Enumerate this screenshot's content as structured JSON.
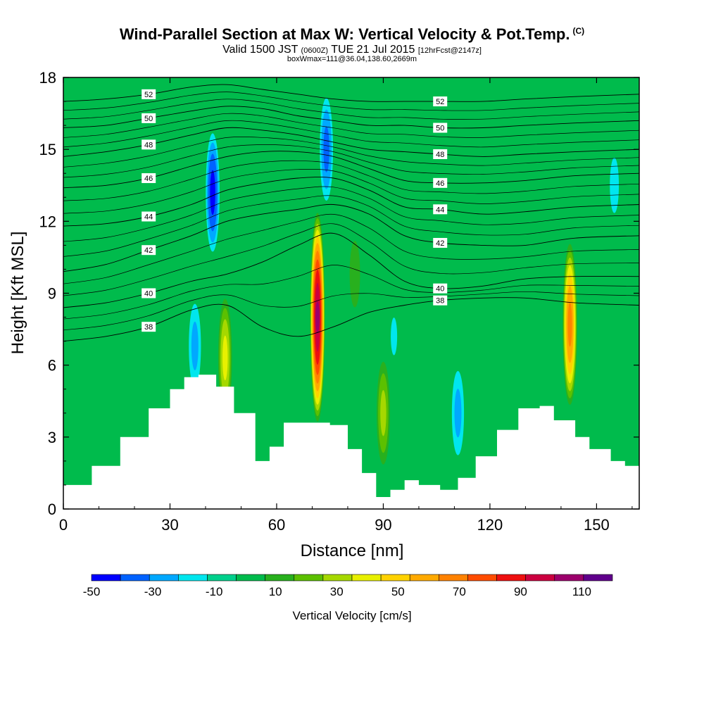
{
  "header": {
    "title": "Wind-Parallel Section at Max W: Vertical Velocity & Pot.Temp.",
    "corner_mark": "(C)",
    "valid_prefix": "Valid 1500 JST",
    "valid_utc": "(0600Z)",
    "valid_date": "TUE 21 Jul 2015",
    "forecast": "[12hrFcst@2147z]",
    "box_info": "boxWmax=111@36.04,138.60,2669m"
  },
  "chart_data": {
    "type": "heatmap",
    "xlabel": "Distance [nm]",
    "ylabel": "Height [Kft MSL]",
    "xlim": [
      0,
      162
    ],
    "ylim": [
      0,
      18
    ],
    "x_ticks": [
      0,
      30,
      60,
      90,
      120,
      150
    ],
    "y_ticks": [
      0,
      3,
      6,
      9,
      12,
      15,
      18
    ],
    "background_value_cm_s": 0,
    "updrafts": [
      {
        "x": 71.5,
        "y": 8.0,
        "peak_cm_s": 111
      },
      {
        "x": 142.5,
        "y": 7.7,
        "peak_cm_s": 75
      },
      {
        "x": 45.5,
        "y": 6.3,
        "peak_cm_s": 45
      },
      {
        "x": 82,
        "y": 9.8,
        "peak_cm_s": 18
      },
      {
        "x": 90,
        "y": 4.0,
        "peak_cm_s": 35
      }
    ],
    "downdrafts": [
      {
        "x": 42,
        "y": 13.2,
        "peak_cm_s": -45
      },
      {
        "x": 74,
        "y": 15.0,
        "peak_cm_s": -35
      },
      {
        "x": 37,
        "y": 6.8,
        "peak_cm_s": -25
      },
      {
        "x": 111,
        "y": 4.0,
        "peak_cm_s": -25
      },
      {
        "x": 155,
        "y": 13.5,
        "peak_cm_s": -15
      },
      {
        "x": 93,
        "y": 7.2,
        "peak_cm_s": -12
      }
    ],
    "terrain": {
      "x": [
        0,
        8,
        16,
        24,
        30,
        34,
        38,
        43,
        48,
        54,
        58,
        62,
        66,
        70,
        75,
        80,
        84,
        88,
        92,
        96,
        100,
        106,
        111,
        116,
        122,
        128,
        134,
        138,
        144,
        148,
        154,
        158,
        162
      ],
      "y": [
        1.0,
        1.8,
        3.0,
        4.2,
        5.0,
        5.5,
        5.6,
        5.1,
        4.0,
        2.0,
        2.6,
        3.6,
        3.6,
        3.6,
        3.5,
        2.5,
        1.5,
        0.5,
        0.8,
        1.2,
        1.0,
        0.8,
        1.3,
        2.2,
        3.3,
        4.2,
        4.3,
        3.7,
        3.0,
        2.5,
        2.0,
        1.8,
        1.6
      ]
    },
    "theta_contours": [
      {
        "label": "38",
        "y": [
          7.0,
          7.2,
          7.6,
          8.3,
          8.5,
          7.6,
          7.2,
          7.6,
          8.2,
          8.5,
          8.7,
          8.8,
          8.8,
          8.6,
          8.5
        ]
      },
      {
        "label": "40",
        "y": [
          8.4,
          8.6,
          9.0,
          9.5,
          9.8,
          10.3,
          11.0,
          11.5,
          10.6,
          9.5,
          9.2,
          9.3,
          9.6,
          9.7,
          9.7
        ]
      },
      {
        "label": "42",
        "y": [
          9.9,
          10.2,
          10.8,
          11.4,
          12.0,
          12.3,
          12.5,
          12.7,
          12.3,
          11.4,
          11.1,
          11.0,
          11.0,
          11.3,
          11.4
        ]
      },
      {
        "label": "44",
        "y": [
          11.8,
          11.9,
          12.2,
          12.7,
          13.3,
          13.6,
          13.8,
          13.8,
          13.3,
          12.6,
          12.5,
          12.3,
          12.4,
          12.6,
          12.7
        ]
      },
      {
        "label": "46",
        "y": [
          13.4,
          13.5,
          13.8,
          14.3,
          14.7,
          14.9,
          14.9,
          14.7,
          14.2,
          13.7,
          13.6,
          13.6,
          13.7,
          13.9,
          14.0
        ]
      },
      {
        "label": "48",
        "y": [
          14.7,
          14.9,
          15.2,
          15.6,
          15.9,
          15.8,
          15.6,
          15.3,
          15.0,
          14.9,
          14.8,
          14.7,
          14.8,
          14.9,
          15.0
        ]
      },
      {
        "label": "50",
        "y": [
          15.9,
          16.0,
          16.3,
          16.6,
          16.8,
          16.7,
          16.4,
          16.2,
          16.0,
          16.0,
          15.9,
          15.9,
          16.0,
          16.1,
          16.2
        ]
      },
      {
        "label": "52",
        "y": [
          17.0,
          17.1,
          17.3,
          17.6,
          17.7,
          17.5,
          17.3,
          17.1,
          17.0,
          17.0,
          17.0,
          17.0,
          17.1,
          17.2,
          17.3
        ]
      }
    ],
    "contour_x": [
      0,
      12,
      24,
      36,
      46,
      56,
      66,
      76,
      86,
      96,
      106,
      118,
      130,
      144,
      162
    ],
    "colorbar": {
      "label": "Vertical Velocity [cm/s]",
      "tick_labels": [
        "-50",
        "-30",
        "-10",
        "10",
        "30",
        "50",
        "70",
        "90",
        "110"
      ],
      "boundaries": [
        -50,
        -40,
        -30,
        -20,
        -10,
        0,
        10,
        20,
        30,
        40,
        50,
        60,
        70,
        80,
        90,
        100,
        110,
        120
      ],
      "colors": [
        "#0000ff",
        "#0062ff",
        "#00a8ff",
        "#00e6ee",
        "#00d08c",
        "#00bb4c",
        "#28b01e",
        "#5cc000",
        "#a6d800",
        "#e8f000",
        "#ffd200",
        "#ffaa00",
        "#ff8200",
        "#ff4c00",
        "#ee1010",
        "#cc0040",
        "#9c006c",
        "#60008c"
      ]
    }
  }
}
